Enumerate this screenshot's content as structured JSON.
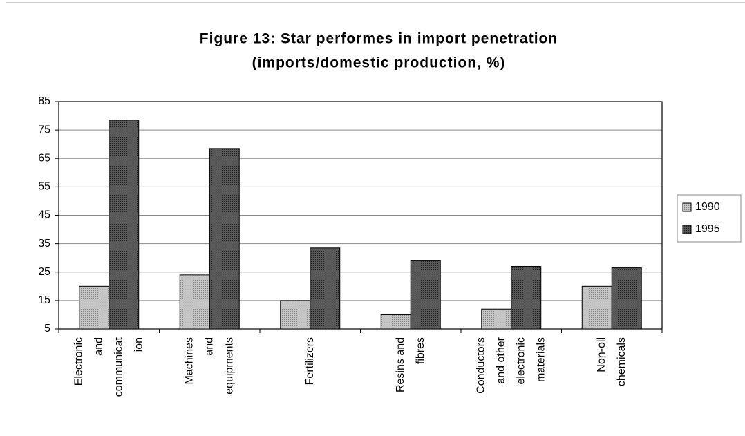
{
  "chart_data": {
    "type": "bar",
    "title": "Figure 13: Star performes in import penetration",
    "subtitle": "(imports/domestic production, %)",
    "categories": [
      [
        "Electronic",
        "and",
        "communicat",
        "ion"
      ],
      [
        "Machines",
        "and",
        "equipments"
      ],
      [
        "Fertilizers"
      ],
      [
        "Resins and",
        "fibres"
      ],
      [
        "Conductors",
        "and other",
        "electronic",
        "materials"
      ],
      [
        "Non-oil",
        "chemicals"
      ]
    ],
    "series": [
      {
        "name": "1990",
        "color": "#c4c4c4",
        "values": [
          20,
          24,
          15,
          10,
          12,
          20
        ]
      },
      {
        "name": "1995",
        "color": "#585858",
        "values": [
          78.5,
          68.5,
          33.5,
          29,
          27,
          26.5
        ]
      }
    ],
    "ylim": [
      5,
      85
    ],
    "yticks": [
      5,
      15,
      25,
      35,
      45,
      55,
      65,
      75,
      85
    ],
    "grid": true,
    "legend": "right"
  }
}
